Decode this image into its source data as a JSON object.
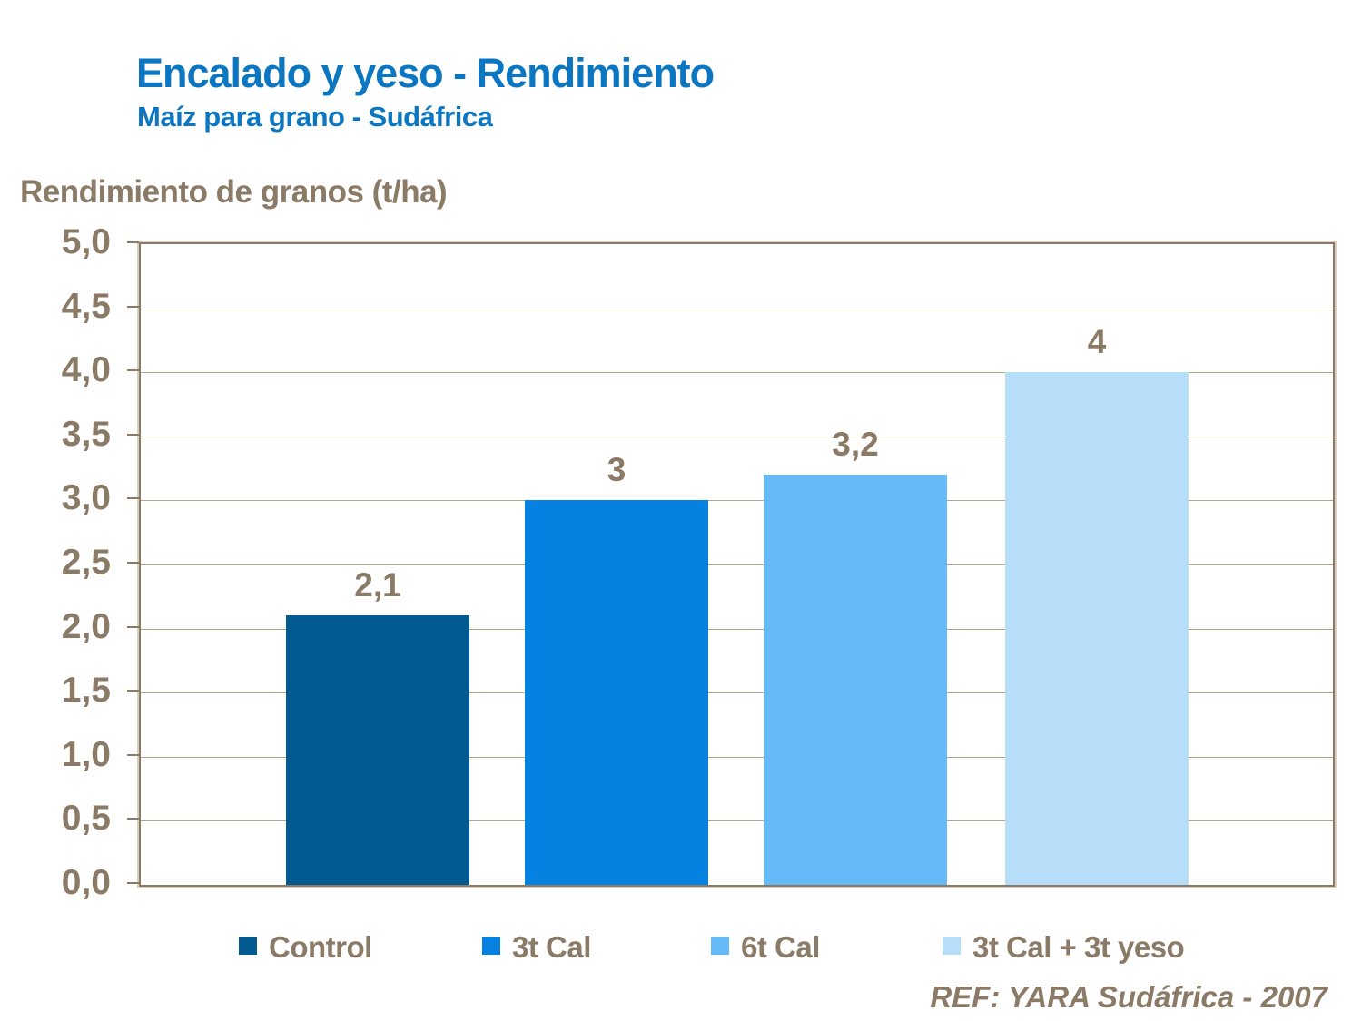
{
  "slide": {
    "title": "Encalado y yeso - Rendimiento",
    "subtitle": "Maíz para grano - Sudáfrica",
    "axis_title": "Rendimiento de granos (t/ha)",
    "ref_text": "REF: YARA Sudáfrica - 2007"
  },
  "colors": {
    "title_blue": "#0b76c1",
    "text_taupe": "#8a7a66",
    "frame": "#8a7a66",
    "frame_outer": "#d9d0c2",
    "gridline": "#b3a58c",
    "background": "#ffffff"
  },
  "chart_data": {
    "type": "bar",
    "title": "",
    "xlabel": "",
    "ylabel": "Rendimiento de granos (t/ha)",
    "ylim": [
      0,
      5
    ],
    "ytick_step": 0.5,
    "ytick_labels": [
      "5,0",
      "4,5",
      "4,0",
      "3,5",
      "3,0",
      "2,5",
      "2,0",
      "1,5",
      "1,0",
      "0,5",
      "0,0"
    ],
    "grid": true,
    "legend_position": "bottom",
    "categories": [
      "Control",
      "3t Cal",
      "6t Cal",
      "3t Cal + 3t yeso"
    ],
    "values": [
      2.1,
      3.0,
      3.2,
      4.0
    ],
    "series": [
      {
        "name": "Control",
        "value": 2.1,
        "display_label": "2,1",
        "color": "#025a90"
      },
      {
        "name": "3t Cal",
        "value": 3.0,
        "display_label": "3",
        "color": "#0581e2"
      },
      {
        "name": "6t Cal",
        "value": 3.2,
        "display_label": "3,2",
        "color": "#66baf8"
      },
      {
        "name": "3t Cal + 3t yeso",
        "value": 4.0,
        "display_label": "4",
        "color": "#b7def9"
      }
    ]
  }
}
